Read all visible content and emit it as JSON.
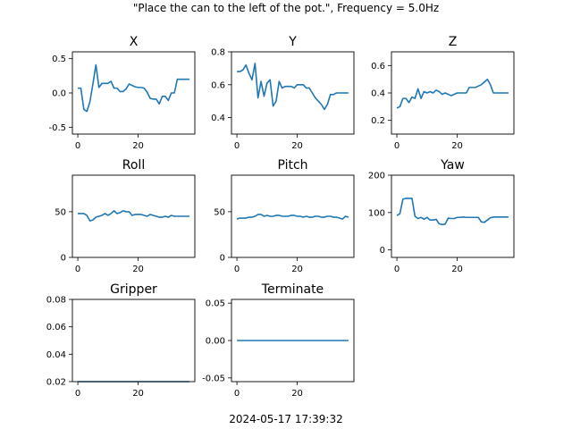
{
  "figure": {
    "suptitle": "\"Place the can to the left of the pot.\", Frequency = 5.0Hz",
    "footer": "2024-05-17 17:39:32",
    "line_color": "#1f77b4"
  },
  "chart_data": [
    {
      "type": "line",
      "title": "X",
      "x_ticks": [
        0,
        20
      ],
      "xlim": [
        -1.8,
        38.8
      ],
      "ylim": [
        -0.6,
        0.6
      ],
      "y_ticks": [
        -0.5,
        0.0,
        0.5
      ],
      "y_tick_labels": [
        "-0.5",
        "0.0",
        "0.5"
      ],
      "x": [
        0,
        1,
        2,
        3,
        4,
        5,
        6,
        7,
        8,
        9,
        10,
        11,
        12,
        13,
        14,
        15,
        16,
        17,
        18,
        19,
        20,
        21,
        22,
        23,
        24,
        25,
        26,
        27,
        28,
        29,
        30,
        31,
        32,
        33,
        34,
        35,
        36,
        37
      ],
      "values": [
        0.07,
        0.07,
        -0.24,
        -0.27,
        -0.13,
        0.13,
        0.41,
        0.08,
        0.14,
        0.14,
        0.14,
        0.17,
        0.07,
        0.07,
        0.02,
        0.02,
        0.06,
        0.13,
        0.11,
        0.09,
        0.08,
        0.08,
        0.07,
        0.01,
        -0.08,
        -0.09,
        -0.09,
        -0.16,
        -0.05,
        -0.05,
        -0.11,
        0.0,
        0.0,
        0.2,
        0.2,
        0.2,
        0.2,
        0.2
      ]
    },
    {
      "type": "line",
      "title": "Y",
      "x_ticks": [
        0,
        20
      ],
      "xlim": [
        -1.8,
        38.8
      ],
      "ylim": [
        0.3,
        0.8
      ],
      "y_ticks": [
        0.4,
        0.6,
        0.8
      ],
      "y_tick_labels": [
        "0.4",
        "0.6",
        "0.8"
      ],
      "x": [
        0,
        1,
        2,
        3,
        4,
        5,
        6,
        7,
        8,
        9,
        10,
        11,
        12,
        13,
        14,
        15,
        16,
        17,
        18,
        19,
        20,
        21,
        22,
        23,
        24,
        25,
        26,
        27,
        28,
        29,
        30,
        31,
        32,
        33,
        34,
        35,
        36,
        37
      ],
      "values": [
        0.68,
        0.68,
        0.69,
        0.72,
        0.67,
        0.63,
        0.73,
        0.52,
        0.62,
        0.53,
        0.61,
        0.63,
        0.47,
        0.5,
        0.62,
        0.58,
        0.59,
        0.59,
        0.59,
        0.58,
        0.6,
        0.6,
        0.6,
        0.58,
        0.58,
        0.55,
        0.52,
        0.5,
        0.48,
        0.45,
        0.48,
        0.54,
        0.54,
        0.55,
        0.55,
        0.55,
        0.55,
        0.55
      ]
    },
    {
      "type": "line",
      "title": "Z",
      "x_ticks": [
        0,
        20
      ],
      "xlim": [
        -1.8,
        38.8
      ],
      "ylim": [
        0.1,
        0.7
      ],
      "y_ticks": [
        0.2,
        0.4,
        0.6
      ],
      "y_tick_labels": [
        "0.2",
        "0.4",
        "0.6"
      ],
      "x": [
        0,
        1,
        2,
        3,
        4,
        5,
        6,
        7,
        8,
        9,
        10,
        11,
        12,
        13,
        14,
        15,
        16,
        17,
        18,
        19,
        20,
        21,
        22,
        23,
        24,
        25,
        26,
        27,
        28,
        29,
        30,
        31,
        32,
        33,
        34,
        35,
        36,
        37
      ],
      "values": [
        0.29,
        0.3,
        0.36,
        0.36,
        0.33,
        0.37,
        0.36,
        0.43,
        0.36,
        0.41,
        0.4,
        0.41,
        0.4,
        0.42,
        0.41,
        0.39,
        0.4,
        0.39,
        0.38,
        0.39,
        0.4,
        0.4,
        0.4,
        0.4,
        0.44,
        0.44,
        0.44,
        0.45,
        0.46,
        0.48,
        0.5,
        0.46,
        0.4,
        0.4,
        0.4,
        0.4,
        0.4,
        0.4
      ]
    },
    {
      "type": "line",
      "title": "Roll",
      "x_ticks": [
        0,
        20
      ],
      "xlim": [
        -1.8,
        38.8
      ],
      "ylim": [
        0,
        90
      ],
      "y_ticks": [
        0,
        50
      ],
      "y_tick_labels": [
        "0",
        "50"
      ],
      "x": [
        0,
        1,
        2,
        3,
        4,
        5,
        6,
        7,
        8,
        9,
        10,
        11,
        12,
        13,
        14,
        15,
        16,
        17,
        18,
        19,
        20,
        21,
        22,
        23,
        24,
        25,
        26,
        27,
        28,
        29,
        30,
        31,
        32,
        33,
        34,
        35,
        36,
        37
      ],
      "values": [
        48,
        48,
        48,
        46,
        40,
        41,
        44,
        45,
        46,
        48,
        46,
        48,
        51,
        48,
        49,
        51,
        50,
        50,
        46,
        47,
        47,
        47,
        46,
        45,
        47,
        46,
        45,
        44,
        44,
        45,
        44,
        46,
        45,
        45,
        45,
        45,
        45,
        45
      ]
    },
    {
      "type": "line",
      "title": "Pitch",
      "x_ticks": [
        0,
        20
      ],
      "xlim": [
        -1.8,
        38.8
      ],
      "ylim": [
        0,
        90
      ],
      "y_ticks": [
        0,
        50
      ],
      "y_tick_labels": [
        "0",
        "50"
      ],
      "x": [
        0,
        1,
        2,
        3,
        4,
        5,
        6,
        7,
        8,
        9,
        10,
        11,
        12,
        13,
        14,
        15,
        16,
        17,
        18,
        19,
        20,
        21,
        22,
        23,
        24,
        25,
        26,
        27,
        28,
        29,
        30,
        31,
        32,
        33,
        34,
        35,
        36,
        37
      ],
      "values": [
        42,
        43,
        43,
        43,
        44,
        44,
        45,
        47,
        47,
        45,
        46,
        45,
        45,
        46,
        46,
        45,
        45,
        45,
        46,
        46,
        45,
        45,
        44,
        45,
        44,
        44,
        45,
        45,
        44,
        44,
        45,
        45,
        44,
        44,
        43,
        42,
        45,
        44
      ]
    },
    {
      "type": "line",
      "title": "Yaw",
      "x_ticks": [
        0,
        20
      ],
      "xlim": [
        -1.8,
        38.8
      ],
      "ylim": [
        -20,
        200
      ],
      "y_ticks": [
        0,
        100,
        200
      ],
      "y_tick_labels": [
        "0",
        "100",
        "200"
      ],
      "x": [
        0,
        1,
        2,
        3,
        4,
        5,
        6,
        7,
        8,
        9,
        10,
        11,
        12,
        13,
        14,
        15,
        16,
        17,
        18,
        19,
        20,
        21,
        22,
        23,
        24,
        25,
        26,
        27,
        28,
        29,
        30,
        31,
        32,
        33,
        34,
        35,
        36,
        37
      ],
      "values": [
        92,
        97,
        136,
        138,
        138,
        138,
        90,
        84,
        87,
        82,
        87,
        80,
        80,
        82,
        70,
        68,
        69,
        85,
        84,
        84,
        87,
        87,
        88,
        87,
        87,
        87,
        87,
        87,
        75,
        74,
        80,
        86,
        88,
        88,
        88,
        88,
        88,
        88
      ]
    },
    {
      "type": "line",
      "title": "Gripper",
      "x_ticks": [
        0,
        20
      ],
      "xlim": [
        -1.8,
        38.8
      ],
      "ylim": [
        0.02,
        0.08
      ],
      "y_ticks": [
        0.02,
        0.04,
        0.06,
        0.08
      ],
      "y_tick_labels": [
        "0.02",
        "0.04",
        "0.06",
        "0.08"
      ],
      "x": [
        0,
        37
      ],
      "values": [
        0.02,
        0.02
      ]
    },
    {
      "type": "line",
      "title": "Terminate",
      "x_ticks": [
        0,
        20
      ],
      "xlim": [
        -1.8,
        38.8
      ],
      "ylim": [
        -0.055,
        0.055
      ],
      "y_ticks": [
        -0.05,
        0.0,
        0.05
      ],
      "y_tick_labels": [
        "-0.05",
        "0.00",
        "0.05"
      ],
      "x": [
        0,
        37
      ],
      "values": [
        0.0,
        0.0
      ]
    }
  ]
}
